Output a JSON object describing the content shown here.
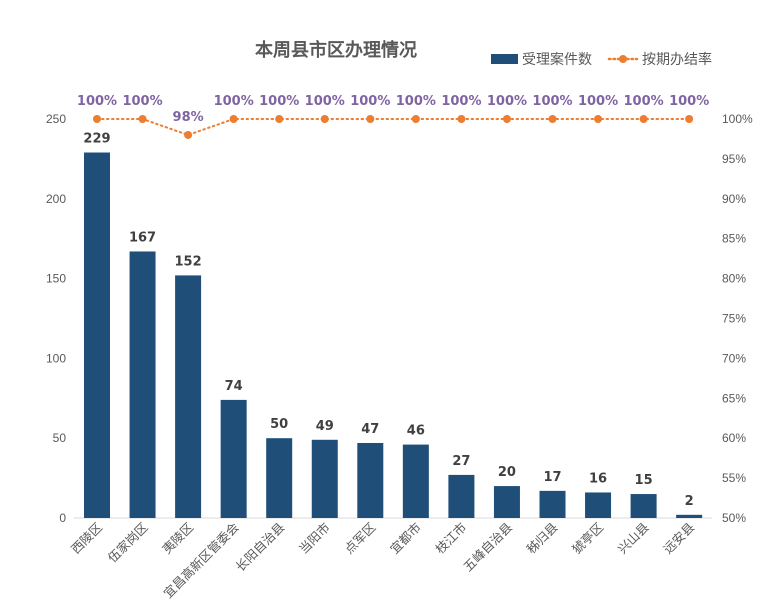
{
  "chart_data": {
    "type": "bar",
    "title": "本周县市区办理情况",
    "categories": [
      "西陵区",
      "伍家岗区",
      "夷陵区",
      "宜昌高新区管委会",
      "长阳自治县",
      "当阳市",
      "点军区",
      "宜都市",
      "枝江市",
      "五峰自治县",
      "秭归县",
      "猇亭区",
      "兴山县",
      "远安县"
    ],
    "series": [
      {
        "name": "受理案件数",
        "type": "bar",
        "axis": "left",
        "color": "#1f4e79",
        "values": [
          229,
          167,
          152,
          74,
          50,
          49,
          47,
          46,
          27,
          20,
          17,
          16,
          15,
          2
        ],
        "labels": [
          "229",
          "167",
          "152",
          "74",
          "50",
          "49",
          "47",
          "46",
          "27",
          "20",
          "17",
          "16",
          "15",
          "2"
        ]
      },
      {
        "name": "按期办结率",
        "type": "line",
        "axis": "right",
        "color": "#ed7d31",
        "line_style": "dotted",
        "values": [
          100,
          100,
          98,
          100,
          100,
          100,
          100,
          100,
          100,
          100,
          100,
          100,
          100,
          100
        ],
        "labels": [
          "100%",
          "100%",
          "98%",
          "100%",
          "100%",
          "100%",
          "100%",
          "100%",
          "100%",
          "100%",
          "100%",
          "100%",
          "100%",
          "100%"
        ]
      }
    ],
    "left_axis": {
      "ylim": [
        0,
        250
      ],
      "ticks": [
        "0",
        "50",
        "100",
        "150",
        "200",
        "250"
      ]
    },
    "right_axis": {
      "ylim": [
        50,
        100
      ],
      "ticks": [
        "50%",
        "55%",
        "60%",
        "65%",
        "70%",
        "75%",
        "80%",
        "85%",
        "90%",
        "95%",
        "100%"
      ]
    },
    "xlabel": "",
    "ylabel": "",
    "grid": false,
    "legend": {
      "position": "top-right",
      "entries": [
        "受理案件数",
        "按期办结率"
      ]
    },
    "colors": {
      "bar": "#1f4e79",
      "line": "#ed7d31",
      "pct_label": "#8064a2",
      "value_label": "#404040"
    }
  }
}
